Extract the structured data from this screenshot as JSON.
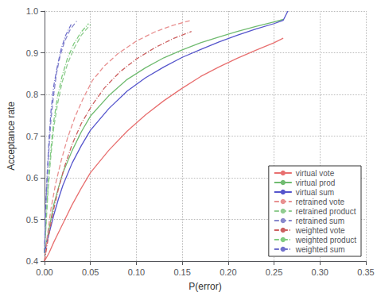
{
  "chart_data": {
    "type": "line",
    "xlabel": "P(error)",
    "ylabel": "Acceptance rate",
    "xlim": [
      0,
      0.35
    ],
    "ylim": [
      0.4,
      1.0
    ],
    "xticks": [
      {
        "value": 0,
        "label": "0.00"
      },
      0.05,
      {
        "value": 0.1,
        "label": "0.10"
      },
      0.15,
      {
        "value": 0.2,
        "label": "0.20"
      },
      0.25,
      {
        "value": 0.3,
        "label": "0.30"
      },
      0.35
    ],
    "yticks": [
      0.4,
      0.5,
      0.6,
      0.7,
      0.8,
      0.9,
      {
        "value": 1.0,
        "label": "1.0"
      }
    ],
    "grid": true,
    "legend": "lower right",
    "series": [
      {
        "name": "virtual vote",
        "color": "#e87070",
        "line_style": "solid",
        "x": [
          0.0,
          0.005,
          0.01,
          0.02,
          0.03,
          0.04,
          0.05,
          0.07,
          0.09,
          0.11,
          0.13,
          0.15,
          0.17,
          0.19,
          0.21,
          0.23,
          0.25,
          0.26
        ],
        "values": [
          0.4,
          0.42,
          0.445,
          0.49,
          0.535,
          0.575,
          0.612,
          0.666,
          0.712,
          0.751,
          0.785,
          0.815,
          0.843,
          0.866,
          0.887,
          0.906,
          0.924,
          0.935
        ]
      },
      {
        "name": "virtual prod",
        "color": "#70bb70",
        "line_style": "solid",
        "x": [
          0.0,
          0.003,
          0.006,
          0.01,
          0.015,
          0.02,
          0.03,
          0.04,
          0.05,
          0.07,
          0.09,
          0.11,
          0.13,
          0.15,
          0.17,
          0.19,
          0.21,
          0.23,
          0.25,
          0.26
        ],
        "values": [
          0.42,
          0.455,
          0.49,
          0.535,
          0.575,
          0.612,
          0.665,
          0.71,
          0.748,
          0.797,
          0.836,
          0.864,
          0.888,
          0.907,
          0.924,
          0.938,
          0.951,
          0.963,
          0.974,
          0.98
        ]
      },
      {
        "name": "virtual sum",
        "color": "#5555cc",
        "line_style": "solid",
        "x": [
          0.0,
          0.003,
          0.006,
          0.01,
          0.015,
          0.02,
          0.03,
          0.04,
          0.05,
          0.07,
          0.09,
          0.11,
          0.13,
          0.15,
          0.17,
          0.19,
          0.21,
          0.23,
          0.25,
          0.26,
          0.265
        ],
        "values": [
          0.42,
          0.45,
          0.475,
          0.51,
          0.548,
          0.582,
          0.635,
          0.677,
          0.714,
          0.766,
          0.808,
          0.84,
          0.866,
          0.889,
          0.908,
          0.926,
          0.942,
          0.957,
          0.97,
          0.978,
          1.0
        ]
      },
      {
        "name": "retrained vote",
        "color": "#e89090",
        "line_style": "dashed",
        "x": [
          0.0,
          0.003,
          0.007,
          0.012,
          0.018,
          0.025,
          0.033,
          0.042,
          0.052,
          0.065,
          0.08,
          0.1,
          0.12,
          0.14,
          0.16
        ],
        "values": [
          0.4,
          0.46,
          0.525,
          0.585,
          0.64,
          0.695,
          0.745,
          0.79,
          0.833,
          0.868,
          0.898,
          0.928,
          0.95,
          0.966,
          0.978
        ]
      },
      {
        "name": "retrained product",
        "color": "#90cc90",
        "line_style": "dashed",
        "x": [
          0.0,
          0.002,
          0.004,
          0.007,
          0.01,
          0.014,
          0.019,
          0.025,
          0.032,
          0.04,
          0.05
        ],
        "values": [
          0.42,
          0.5,
          0.575,
          0.655,
          0.72,
          0.775,
          0.828,
          0.873,
          0.91,
          0.942,
          0.968
        ]
      },
      {
        "name": "retrained sum",
        "color": "#8888cc",
        "line_style": "dashed",
        "x": [
          0.0,
          0.001,
          0.003,
          0.005,
          0.007,
          0.01,
          0.013,
          0.017,
          0.022,
          0.028,
          0.035
        ],
        "values": [
          0.42,
          0.51,
          0.6,
          0.675,
          0.74,
          0.8,
          0.85,
          0.893,
          0.928,
          0.956,
          0.976
        ]
      },
      {
        "name": "weighted vote",
        "color": "#cc6060",
        "line_style": "dashdot",
        "x": [
          0.0,
          0.004,
          0.009,
          0.015,
          0.022,
          0.03,
          0.04,
          0.052,
          0.065,
          0.082,
          0.1,
          0.12,
          0.14,
          0.16
        ],
        "values": [
          0.4,
          0.455,
          0.515,
          0.572,
          0.628,
          0.68,
          0.73,
          0.775,
          0.815,
          0.854,
          0.885,
          0.912,
          0.934,
          0.951
        ]
      },
      {
        "name": "weighted product",
        "color": "#80cc80",
        "line_style": "dashdot",
        "x": [
          0.0,
          0.002,
          0.004,
          0.007,
          0.01,
          0.014,
          0.019,
          0.025,
          0.032,
          0.04,
          0.048
        ],
        "values": [
          0.42,
          0.51,
          0.59,
          0.67,
          0.735,
          0.793,
          0.843,
          0.887,
          0.922,
          0.95,
          0.97
        ]
      },
      {
        "name": "weighted sum",
        "color": "#7070cc",
        "line_style": "dashdot",
        "x": [
          0.0,
          0.001,
          0.003,
          0.005,
          0.007,
          0.01,
          0.014,
          0.018,
          0.023,
          0.029
        ],
        "values": [
          0.42,
          0.52,
          0.615,
          0.695,
          0.76,
          0.82,
          0.868,
          0.908,
          0.942,
          0.968
        ]
      }
    ]
  }
}
